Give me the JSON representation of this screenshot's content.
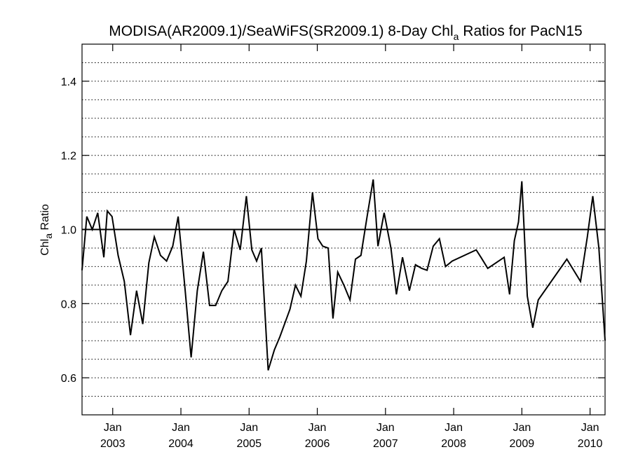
{
  "chart_data": {
    "type": "line",
    "title": "MODISA(AR2009.1)/SeaWiFS(SR2009.1) 8-Day Chl",
    "title_subscript": "a",
    "title_suffix": " Ratios for PacN15",
    "ylabel": "Chl",
    "ylabel_subscript": "a",
    "ylabel_suffix": " Ratio",
    "xlabel": "",
    "xlim": [
      2002.55,
      2010.22
    ],
    "ylim": [
      0.5,
      1.5
    ],
    "yticks": [
      {
        "value": 0.6,
        "label": "0.6"
      },
      {
        "value": 0.8,
        "label": "0.8"
      },
      {
        "value": 1.0,
        "label": "1.0"
      },
      {
        "value": 1.2,
        "label": "1.2"
      },
      {
        "value": 1.4,
        "label": "1.4"
      }
    ],
    "xticks": [
      {
        "value": 2003.0,
        "month": "Jan",
        "year": "2003"
      },
      {
        "value": 2004.0,
        "month": "Jan",
        "year": "2004"
      },
      {
        "value": 2005.0,
        "month": "Jan",
        "year": "2005"
      },
      {
        "value": 2006.0,
        "month": "Jan",
        "year": "2006"
      },
      {
        "value": 2007.0,
        "month": "Jan",
        "year": "2007"
      },
      {
        "value": 2008.0,
        "month": "Jan",
        "year": "2008"
      },
      {
        "value": 2009.0,
        "month": "Jan",
        "year": "2009"
      },
      {
        "value": 2010.0,
        "month": "Jan",
        "year": "2010"
      }
    ],
    "grid": {
      "horizontal_dotted_every": 0.05
    },
    "reference_line": 1.0,
    "line_color": "#000000",
    "series": [
      {
        "x": [
          2002.55,
          2002.62,
          2002.7,
          2002.78,
          2002.87,
          2002.92,
          2002.99,
          2003.08,
          2003.17,
          2003.26,
          2003.35,
          2003.44,
          2003.53,
          2003.61,
          2003.7,
          2003.79,
          2003.88,
          2003.96,
          2004.06,
          2004.15,
          2004.24,
          2004.33,
          2004.42,
          2004.51,
          2004.6,
          2004.69,
          2004.78,
          2004.87,
          2004.96,
          2005.04,
          2005.11,
          2005.18,
          2005.28,
          2005.37,
          2005.45,
          2005.53,
          2005.6,
          2005.68,
          2005.76,
          2005.84,
          2005.93,
          2006.01,
          2006.08,
          2006.16,
          2006.23,
          2006.3,
          2006.39,
          2006.48,
          2006.56,
          2006.64,
          2006.73,
          2006.82,
          2006.89,
          2006.98,
          2007.08,
          2007.16,
          2007.25,
          2007.35,
          2007.44,
          2007.53,
          2007.61,
          2007.7,
          2007.79,
          2007.88,
          2007.98,
          2008.33,
          2008.4,
          2008.5,
          2008.74,
          2008.82,
          2008.89,
          2008.95,
          2009.0,
          2009.08,
          2009.16,
          2009.24,
          2009.66,
          2009.86,
          2009.96,
          2010.04,
          2010.13,
          2010.22
        ],
        "y": [
          0.89,
          1.035,
          1.0,
          1.045,
          0.925,
          1.05,
          1.035,
          0.93,
          0.86,
          0.715,
          0.835,
          0.745,
          0.91,
          0.98,
          0.93,
          0.915,
          0.955,
          1.035,
          0.84,
          0.655,
          0.835,
          0.94,
          0.795,
          0.795,
          0.835,
          0.86,
          1.0,
          0.945,
          1.09,
          0.945,
          0.915,
          0.95,
          0.62,
          0.675,
          0.71,
          0.75,
          0.785,
          0.85,
          0.82,
          0.915,
          1.1,
          0.975,
          0.955,
          0.95,
          0.76,
          0.885,
          0.85,
          0.81,
          0.92,
          0.93,
          1.035,
          1.135,
          0.955,
          1.045,
          0.95,
          0.825,
          0.925,
          0.835,
          0.905,
          0.895,
          0.89,
          0.955,
          0.975,
          0.9,
          0.915,
          0.945,
          0.925,
          0.895,
          0.925,
          0.825,
          0.97,
          1.02,
          1.13,
          0.82,
          0.735,
          0.81,
          0.92,
          0.86,
          0.98,
          1.09,
          0.95,
          0.7
        ]
      }
    ]
  }
}
